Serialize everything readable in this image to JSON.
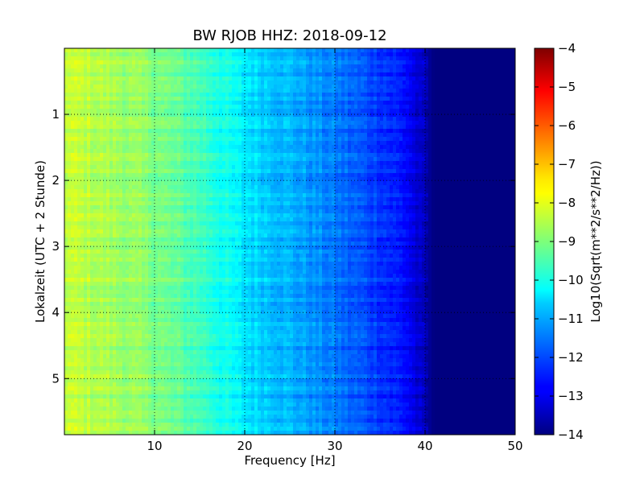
{
  "chart_data": {
    "type": "heatmap",
    "title": "BW RJOB HHZ: 2018-09-12",
    "xlabel": "Frequency [Hz]",
    "ylabel": "Lokalzeit (UTC + 2 Stunde)",
    "xlim": [
      0,
      50
    ],
    "ylim": [
      5.85,
      0
    ],
    "xticks": [
      10,
      20,
      30,
      40,
      50
    ],
    "xtick_labels": [
      "10",
      "20",
      "30",
      "40",
      "50"
    ],
    "yticks": [
      1,
      2,
      3,
      4,
      5
    ],
    "ytick_labels": [
      "1",
      "2",
      "3",
      "4",
      "5"
    ],
    "grid": true,
    "colormap": "jet",
    "colorbar": {
      "label": "Log10(Sqrt(m**2/s**2/Hz))",
      "range": [
        -14,
        -4
      ],
      "ticks": [
        -14,
        -13,
        -12,
        -11,
        -10,
        -9,
        -8,
        -7,
        -6,
        -5,
        -4
      ],
      "tick_labels": [
        "−14",
        "−13",
        "−12",
        "−11",
        "−10",
        "−9",
        "−8",
        "−7",
        "−6",
        "−5",
        "−4"
      ]
    },
    "approx_profile": {
      "frequency_hz": [
        0,
        2,
        5,
        10,
        15,
        20,
        25,
        30,
        35,
        38,
        41,
        50
      ],
      "log10_psd": [
        -8.3,
        -8.4,
        -8.6,
        -9.0,
        -9.6,
        -10.5,
        -11.0,
        -11.6,
        -12.2,
        -12.7,
        -14.0,
        -14.0
      ]
    }
  }
}
